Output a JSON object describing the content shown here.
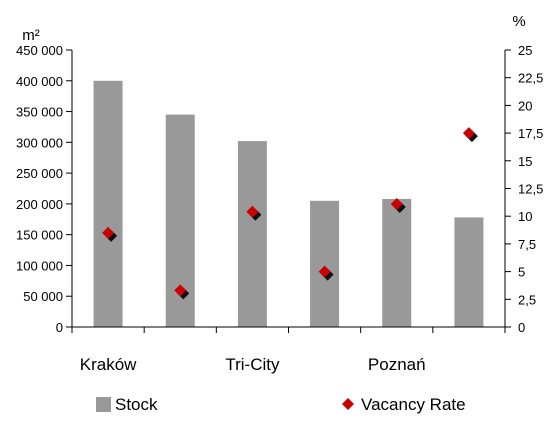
{
  "chart_data": {
    "type": "bar",
    "categories": [
      "Kraków",
      "",
      "Tri-City",
      "",
      "Poznań",
      ""
    ],
    "series": [
      {
        "name": "Stock",
        "axis": "left",
        "kind": "bar",
        "color": "#999999",
        "values": [
          400000,
          345000,
          302000,
          205000,
          208000,
          178000
        ]
      },
      {
        "name": "Vacancy Rate",
        "axis": "right",
        "kind": "marker",
        "color": "#cc0000",
        "values": [
          8.5,
          3.3,
          10.4,
          5.0,
          11.1,
          17.5
        ]
      }
    ],
    "left_axis": {
      "unit": "m²",
      "ylim": [
        0,
        450000
      ],
      "ticks": [
        {
          "value": 0,
          "label": "0"
        },
        {
          "value": 50000,
          "label": "50 000"
        },
        {
          "value": 100000,
          "label": "100 000"
        },
        {
          "value": 150000,
          "label": "150 000"
        },
        {
          "value": 200000,
          "label": "200 000"
        },
        {
          "value": 250000,
          "label": "250 000"
        },
        {
          "value": 300000,
          "label": "300 000"
        },
        {
          "value": 350000,
          "label": "350 000"
        },
        {
          "value": 400000,
          "label": "400 000"
        },
        {
          "value": 450000,
          "label": "450 000"
        }
      ]
    },
    "right_axis": {
      "unit": "%",
      "ylim": [
        0,
        25
      ],
      "ticks": [
        {
          "value": 0,
          "label": "0"
        },
        {
          "value": 2.5,
          "label": "2,5"
        },
        {
          "value": 5,
          "label": "5"
        },
        {
          "value": 7.5,
          "label": "7,5"
        },
        {
          "value": 10,
          "label": "10"
        },
        {
          "value": 12.5,
          "label": "12,5"
        },
        {
          "value": 15,
          "label": "15"
        },
        {
          "value": 17.5,
          "label": "17,5"
        },
        {
          "value": 20,
          "label": "20"
        },
        {
          "value": 22.5,
          "label": "22,5"
        },
        {
          "value": 25,
          "label": "25"
        }
      ]
    },
    "grid": false,
    "legend": {
      "position": "bottom",
      "items": [
        "Stock",
        "Vacancy Rate"
      ]
    }
  }
}
